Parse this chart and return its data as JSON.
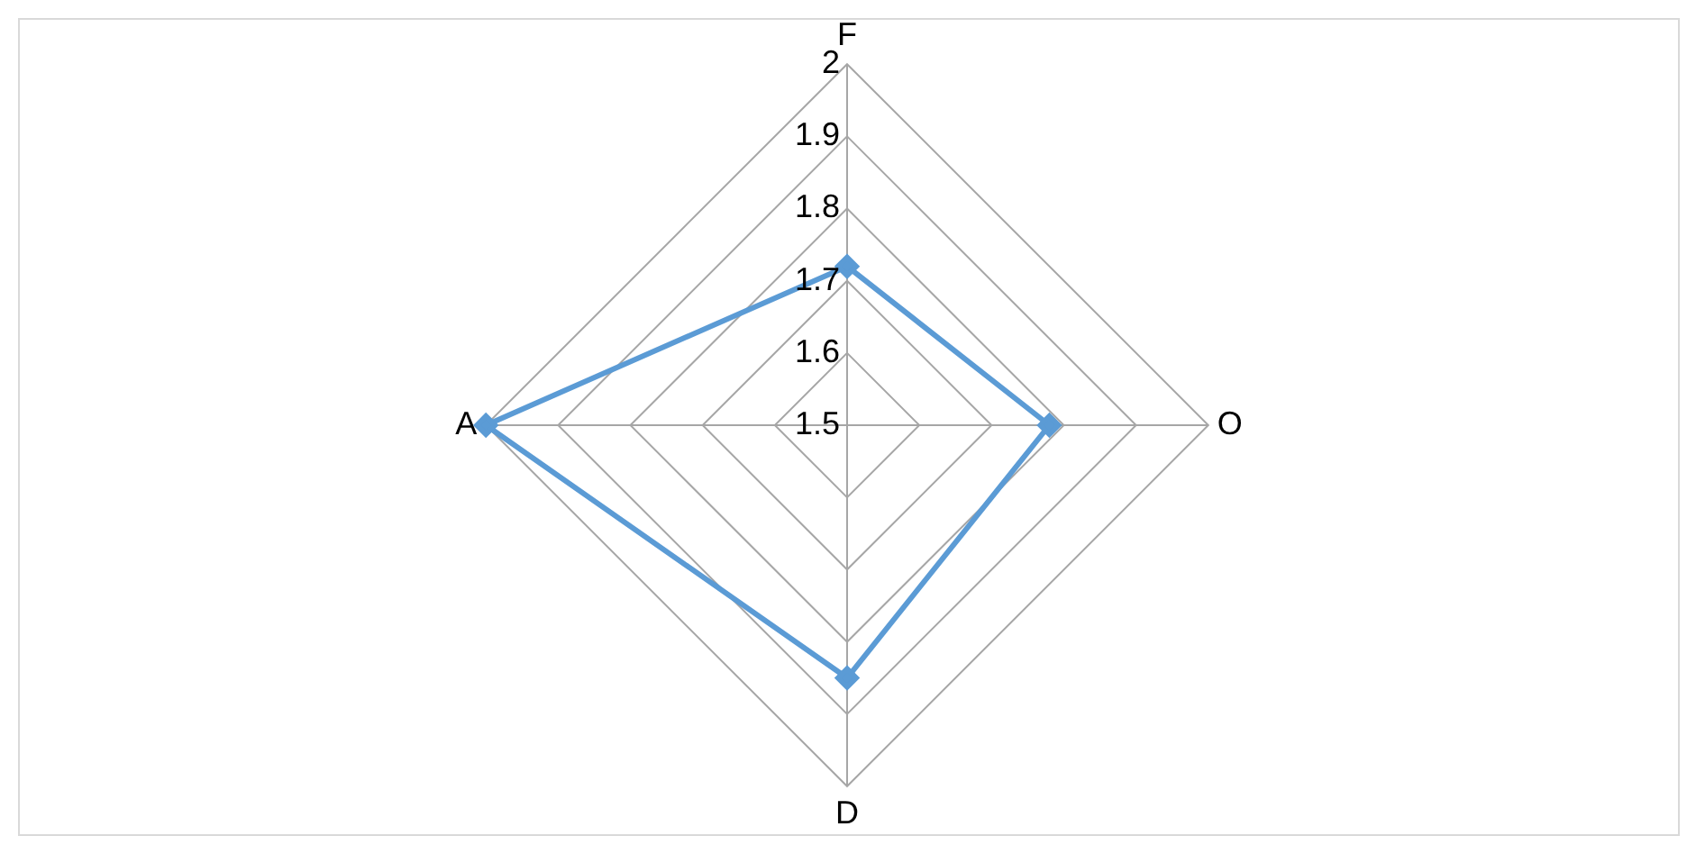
{
  "chart_data": {
    "type": "radar",
    "categories": [
      "F",
      "O",
      "D",
      "A"
    ],
    "series": [
      {
        "color": "#5b9bd5",
        "values": [
          1.72,
          1.78,
          1.85,
          2.0
        ]
      }
    ],
    "ylim": [
      1.5,
      2
    ],
    "yticks": [
      1.5,
      1.6,
      1.7,
      1.8,
      1.9,
      2
    ],
    "grid": true,
    "legend": false,
    "marker": "diamond",
    "line_style": "solid"
  }
}
